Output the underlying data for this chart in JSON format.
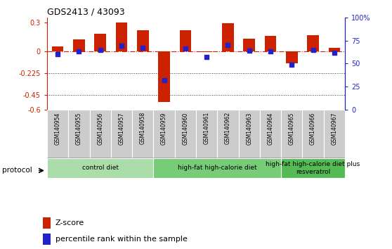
{
  "title": "GDS2413 / 43093",
  "samples": [
    "GSM140954",
    "GSM140955",
    "GSM140956",
    "GSM140957",
    "GSM140958",
    "GSM140959",
    "GSM140960",
    "GSM140961",
    "GSM140962",
    "GSM140963",
    "GSM140964",
    "GSM140965",
    "GSM140966",
    "GSM140967"
  ],
  "zscore": [
    0.05,
    0.12,
    0.18,
    0.295,
    0.22,
    -0.52,
    0.22,
    -0.01,
    0.29,
    0.13,
    0.16,
    -0.12,
    0.17,
    0.04
  ],
  "percentile": [
    60,
    63,
    65,
    69,
    67,
    32,
    66,
    57,
    70,
    64,
    63,
    49,
    65,
    62
  ],
  "ylim_left": [
    -0.6,
    0.35
  ],
  "ylim_right": [
    0,
    100
  ],
  "yticks_left": [
    -0.6,
    -0.45,
    -0.225,
    0.0,
    0.3
  ],
  "ytick_labels_left": [
    "-0.6",
    "-0.45",
    "-0.225",
    "0",
    "0.3"
  ],
  "yticks_right": [
    0,
    25,
    50,
    75,
    100
  ],
  "ytick_labels_right": [
    "0",
    "25",
    "50",
    "75",
    "100%"
  ],
  "hlines": [
    -0.225,
    -0.45
  ],
  "bar_color": "#cc2200",
  "dot_color": "#2222cc",
  "zero_line_color": "#cc2200",
  "hline_color": "#333333",
  "groups": [
    {
      "label": "control diet",
      "start": 0,
      "end": 5,
      "color": "#aaddaa"
    },
    {
      "label": "high-fat high-calorie diet",
      "start": 5,
      "end": 11,
      "color": "#77cc77"
    },
    {
      "label": "high-fat high-calorie diet plus\nresveratrol",
      "start": 11,
      "end": 14,
      "color": "#55bb55"
    }
  ],
  "legend_zscore_label": "Z-score",
  "legend_pct_label": "percentile rank within the sample",
  "protocol_label": "protocol",
  "bar_width": 0.55
}
